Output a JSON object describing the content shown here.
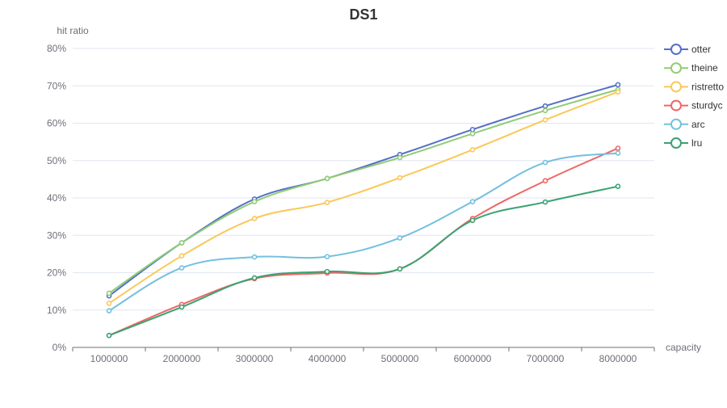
{
  "chart_data": {
    "type": "line",
    "title": "DS1",
    "xlabel": "capacity",
    "ylabel": "hit ratio",
    "categories": [
      "1000000",
      "2000000",
      "3000000",
      "4000000",
      "5000000",
      "6000000",
      "7000000",
      "8000000"
    ],
    "ylim": [
      0,
      80
    ],
    "yticks": [
      "0%",
      "10%",
      "20%",
      "30%",
      "40%",
      "50%",
      "60%",
      "70%",
      "80%"
    ],
    "ytick_values": [
      0,
      10,
      20,
      30,
      40,
      50,
      60,
      70,
      80
    ],
    "grid": true,
    "smooth": true,
    "legend_position": "right",
    "series": [
      {
        "name": "otter",
        "color": "#5470c6",
        "values": [
          13.8,
          28.0,
          39.7,
          45.2,
          51.6,
          58.3,
          64.6,
          70.3
        ]
      },
      {
        "name": "theine",
        "color": "#91cc75",
        "values": [
          14.5,
          28.0,
          39.0,
          45.2,
          50.8,
          57.2,
          63.4,
          69.0
        ]
      },
      {
        "name": "ristretto",
        "color": "#fac858",
        "values": [
          11.8,
          24.5,
          34.5,
          38.8,
          45.4,
          52.9,
          60.9,
          68.4
        ]
      },
      {
        "name": "sturdyc",
        "color": "#ee6666",
        "values": [
          3.2,
          11.5,
          18.4,
          19.9,
          21.0,
          34.5,
          44.6,
          53.3
        ]
      },
      {
        "name": "arc",
        "color": "#73c0de",
        "values": [
          9.8,
          21.3,
          24.2,
          24.3,
          29.3,
          39.0,
          49.5,
          52.0
        ]
      },
      {
        "name": "lru",
        "color": "#3ba272",
        "values": [
          3.2,
          10.8,
          18.6,
          20.3,
          21.0,
          34.0,
          38.9,
          43.1
        ]
      }
    ]
  }
}
